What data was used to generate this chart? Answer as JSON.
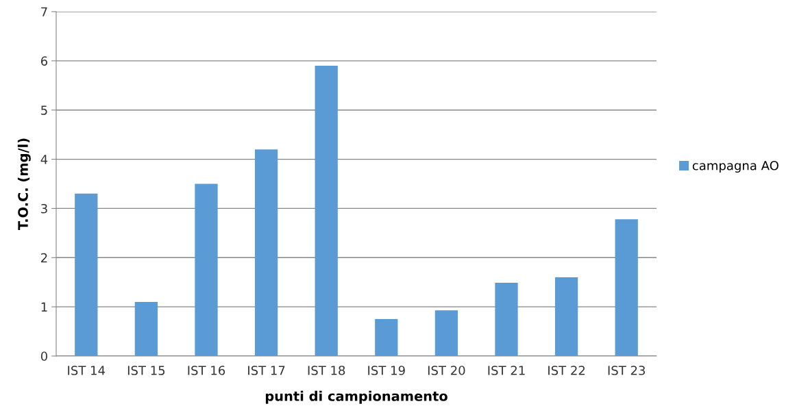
{
  "chart_data": {
    "type": "bar",
    "xlabel": "punti di campionamento",
    "ylabel": "T.O.C. (mg/l)",
    "categories": [
      "IST 14",
      "IST 15",
      "IST 16",
      "IST 17",
      "IST 18",
      "IST 19",
      "IST 20",
      "IST 21",
      "IST 22",
      "IST 23"
    ],
    "series": [
      {
        "name": "campagna AO",
        "color": "#5b9bd5",
        "values": [
          3.3,
          1.1,
          3.5,
          4.2,
          5.9,
          0.75,
          0.93,
          1.49,
          1.6,
          2.78
        ]
      }
    ],
    "ylim": [
      0,
      7
    ],
    "yticks": [
      0,
      1,
      2,
      3,
      4,
      5,
      6,
      7
    ],
    "grid": "y",
    "legend": "right"
  }
}
